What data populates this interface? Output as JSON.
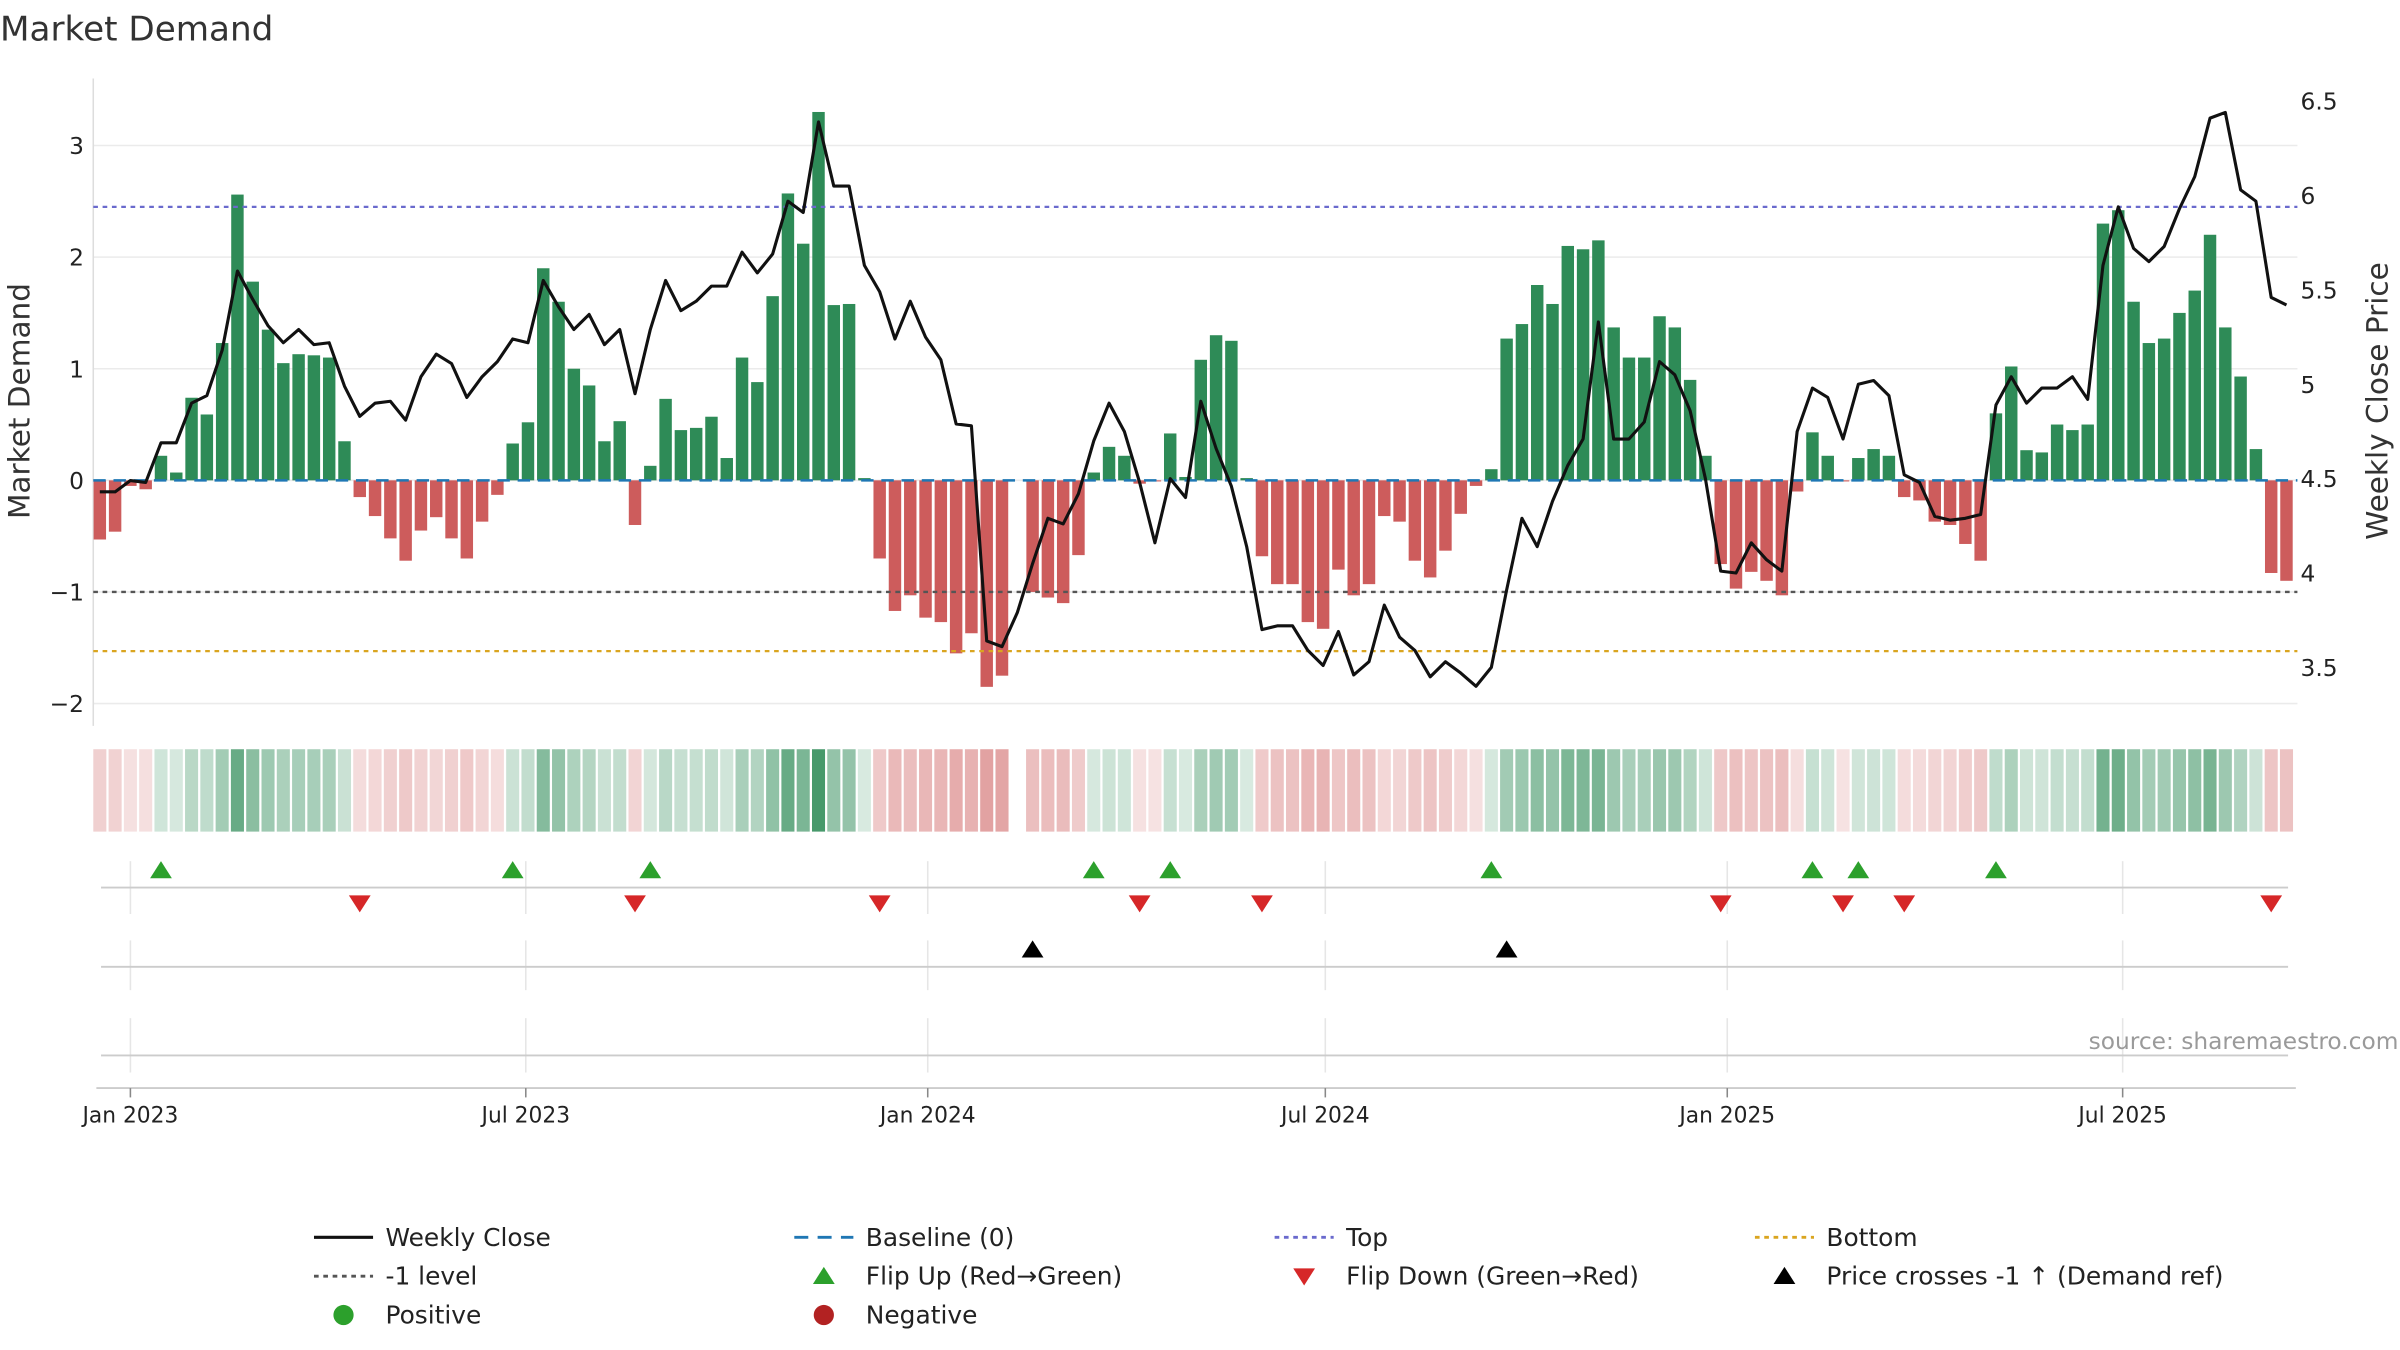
{
  "source": "source: sharemaestro.com",
  "colors": {
    "positive_bar": "#2e8b57",
    "negative_bar": "#cd5c5c",
    "close_line": "#111111",
    "baseline": "#1f77b4",
    "top": "#6a6acd",
    "minus_one": "#555555",
    "bottom": "#daa520",
    "flip_up": "#2ca02c",
    "flip_down": "#d62728",
    "price_cross": "#000000",
    "positive_dot": "#2ca02c",
    "negative_dot": "#b22222",
    "grid": "#ebebeb",
    "axis": "#cccccc"
  },
  "chart_data": {
    "type": "bar",
    "title": "Market Demand",
    "xlabel": "",
    "ylabel": "Market Demand",
    "y2label": "Weekly Close Price",
    "grid": true,
    "legend_position": "bottom",
    "x_start": "2022-12-18",
    "x_step_days": 7,
    "xlim": [
      "2022-12-15",
      "2025-09-19"
    ],
    "xticks": [
      {
        "date": "2023-01-01",
        "label": "Jan 2023"
      },
      {
        "date": "2023-07-01",
        "label": "Jul 2023"
      },
      {
        "date": "2024-01-01",
        "label": "Jan 2024"
      },
      {
        "date": "2024-07-01",
        "label": "Jul 2024"
      },
      {
        "date": "2025-01-01",
        "label": "Jan 2025"
      },
      {
        "date": "2025-07-01",
        "label": "Jul 2025"
      }
    ],
    "ylim": [
      -2.2,
      3.6
    ],
    "yticks": [
      {
        "value": -2,
        "label": "−2"
      },
      {
        "value": -1,
        "label": "−1"
      },
      {
        "value": 0,
        "label": "0"
      },
      {
        "value": 1,
        "label": "1"
      },
      {
        "value": 2,
        "label": "2"
      },
      {
        "value": 3,
        "label": "3"
      }
    ],
    "y2lim": [
      3.19,
      6.62
    ],
    "y2ticks": [
      {
        "value": 3.5,
        "label": "3.5"
      },
      {
        "value": 4,
        "label": "4"
      },
      {
        "value": 4.5,
        "label": "4.5"
      },
      {
        "value": 5,
        "label": "5"
      },
      {
        "value": 5.5,
        "label": "5.5"
      },
      {
        "value": 6,
        "label": "6"
      },
      {
        "value": 6.5,
        "label": "6.5"
      }
    ],
    "demand": [
      -0.53,
      -0.46,
      -0.05,
      -0.08,
      0.22,
      0.07,
      0.74,
      0.59,
      1.23,
      2.56,
      1.78,
      1.35,
      1.05,
      1.13,
      1.12,
      1.1,
      0.35,
      -0.15,
      -0.32,
      -0.52,
      -0.72,
      -0.45,
      -0.33,
      -0.52,
      -0.7,
      -0.37,
      -0.13,
      0.33,
      0.52,
      1.9,
      1.6,
      1.0,
      0.85,
      0.35,
      0.53,
      -0.4,
      0.13,
      0.73,
      0.45,
      0.47,
      0.57,
      0.2,
      1.1,
      0.88,
      1.65,
      2.57,
      2.12,
      3.3,
      1.57,
      1.58,
      0.02,
      -0.7,
      -1.17,
      -1.03,
      -1.23,
      -1.27,
      -1.55,
      -1.37,
      -1.85,
      -1.75,
      null,
      -1.0,
      -1.05,
      -1.1,
      -0.67,
      0.07,
      0.3,
      0.22,
      -0.03,
      -0.01,
      0.42,
      0.03,
      1.08,
      1.3,
      1.25,
      0.02,
      -0.68,
      -0.93,
      -0.93,
      -1.27,
      -1.33,
      -0.8,
      -1.03,
      -0.93,
      -0.32,
      -0.37,
      -0.72,
      -0.87,
      -0.63,
      -0.3,
      -0.05,
      0.1,
      1.27,
      1.4,
      1.75,
      1.58,
      2.1,
      2.07,
      2.15,
      1.37,
      1.1,
      1.1,
      1.47,
      1.37,
      0.9,
      0.22,
      -0.75,
      -0.97,
      -0.82,
      -0.9,
      -1.03,
      -0.1,
      0.43,
      0.22,
      -0.01,
      0.2,
      0.28,
      0.22,
      -0.15,
      -0.18,
      -0.37,
      -0.4,
      -0.57,
      -0.72,
      0.6,
      1.02,
      0.27,
      0.25,
      0.5,
      0.45,
      0.5,
      2.3,
      2.42,
      1.6,
      1.23,
      1.27,
      1.5,
      1.7,
      2.2,
      1.37,
      0.93,
      0.28,
      -0.83,
      -0.9
    ],
    "weekly_close": [
      4.43,
      4.43,
      4.49,
      4.48,
      4.69,
      4.69,
      4.9,
      4.94,
      5.18,
      5.6,
      5.45,
      5.31,
      5.22,
      5.29,
      5.21,
      5.22,
      4.99,
      4.83,
      4.9,
      4.91,
      4.81,
      5.04,
      5.16,
      5.11,
      4.93,
      5.04,
      5.12,
      5.24,
      5.22,
      5.55,
      5.41,
      5.29,
      5.37,
      5.21,
      5.29,
      4.95,
      5.29,
      5.55,
      5.39,
      5.44,
      5.52,
      5.52,
      5.7,
      5.59,
      5.69,
      5.97,
      5.91,
      6.39,
      6.05,
      6.05,
      5.63,
      5.49,
      5.24,
      5.44,
      5.25,
      5.13,
      4.79,
      4.78,
      3.64,
      3.61,
      3.79,
      4.05,
      4.29,
      4.26,
      4.42,
      4.7,
      4.9,
      4.75,
      4.48,
      4.16,
      4.5,
      4.4,
      4.91,
      4.66,
      4.46,
      4.14,
      3.7,
      3.72,
      3.72,
      3.59,
      3.51,
      3.69,
      3.46,
      3.53,
      3.83,
      3.66,
      3.59,
      3.45,
      3.53,
      3.47,
      3.4,
      3.5,
      3.91,
      4.29,
      4.14,
      4.38,
      4.57,
      4.71,
      5.33,
      4.71,
      4.71,
      4.8,
      5.12,
      5.05,
      4.86,
      4.5,
      4.01,
      4.0,
      4.16,
      4.07,
      4.01,
      4.75,
      4.98,
      4.93,
      4.71,
      5.0,
      5.02,
      4.94,
      4.52,
      4.48,
      4.3,
      4.28,
      4.29,
      4.31,
      4.89,
      5.04,
      4.9,
      4.98,
      4.98,
      5.04,
      4.92,
      5.63,
      5.94,
      5.72,
      5.65,
      5.73,
      5.93,
      6.1,
      6.41,
      6.44,
      6.03,
      5.97,
      5.46,
      5.42
    ],
    "levels": {
      "baseline": 0,
      "top": 2.45,
      "minus_one": -1,
      "bottom": -1.53
    },
    "flip_up_weeks": [
      4,
      27,
      36,
      65,
      70,
      91,
      112,
      115,
      124
    ],
    "flip_down_weeks": [
      17,
      35,
      51,
      68,
      76,
      106,
      114,
      118,
      142
    ],
    "price_cross_weeks": [
      61,
      92
    ],
    "legend": [
      {
        "label": "Weekly Close",
        "kind": "line-solid",
        "color": "close_line"
      },
      {
        "label": "Baseline (0)",
        "kind": "line-dashed",
        "color": "baseline"
      },
      {
        "label": "Top",
        "kind": "line-dotted",
        "color": "top"
      },
      {
        "label": "Bottom",
        "kind": "line-dotted",
        "color": "bottom"
      },
      {
        "label": "-1 level",
        "kind": "line-dotted",
        "color": "minus_one"
      },
      {
        "label": "Flip Up (Red→Green)",
        "kind": "triangle-up",
        "color": "flip_up"
      },
      {
        "label": "Flip Down (Green→Red)",
        "kind": "triangle-down",
        "color": "flip_down"
      },
      {
        "label": "Price crosses -1 ↑ (Demand ref)",
        "kind": "triangle-up",
        "color": "price_cross"
      },
      {
        "label": "Positive",
        "kind": "circle",
        "color": "positive_dot"
      },
      {
        "label": "Negative",
        "kind": "circle",
        "color": "negative_dot"
      }
    ]
  }
}
